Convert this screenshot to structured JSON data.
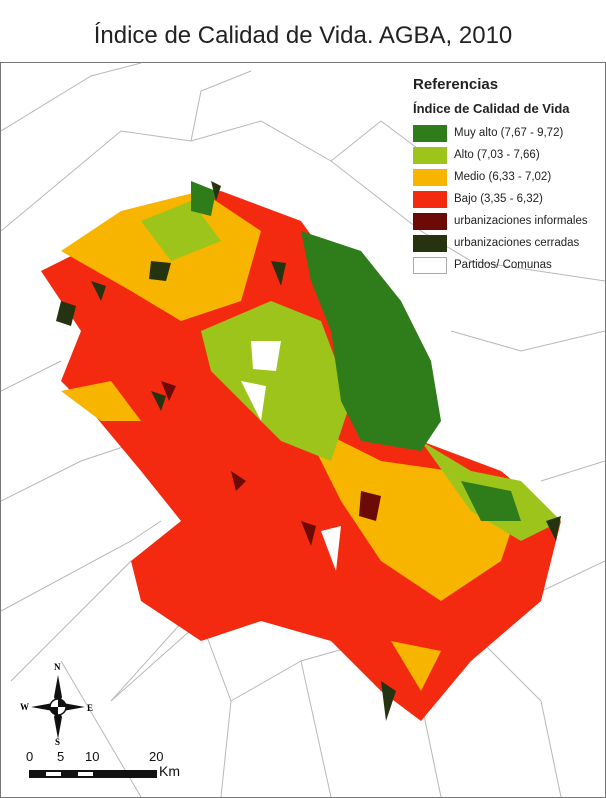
{
  "title": "Índice de Calidad de Vida. AGBA, 2010",
  "legend": {
    "heading": "Referencias",
    "subheading": "Índice de Calidad de Vida",
    "items": [
      {
        "label": "Muy alto (7,67 - 9,72)",
        "color": "#2e7d1a"
      },
      {
        "label": "Alto (7,03 - 7,66)",
        "color": "#9cc41a"
      },
      {
        "label": "Medio (6,33 - 7,02)",
        "color": "#f7b500"
      },
      {
        "label": "Bajo (3,35 - 6,32)",
        "color": "#f42a10"
      },
      {
        "label": "urbanizaciones informales",
        "color": "#6b0a06"
      },
      {
        "label": "urbanizaciones cerradas",
        "color": "#253310"
      },
      {
        "label": "Partidos/ Comunas",
        "color": "#ffffff"
      }
    ]
  },
  "compass": {
    "n": "N",
    "s": "S",
    "e": "E",
    "w": "W"
  },
  "scale_bar": {
    "ticks": [
      "0",
      "5",
      "10",
      "20"
    ],
    "unit": "Km"
  }
}
